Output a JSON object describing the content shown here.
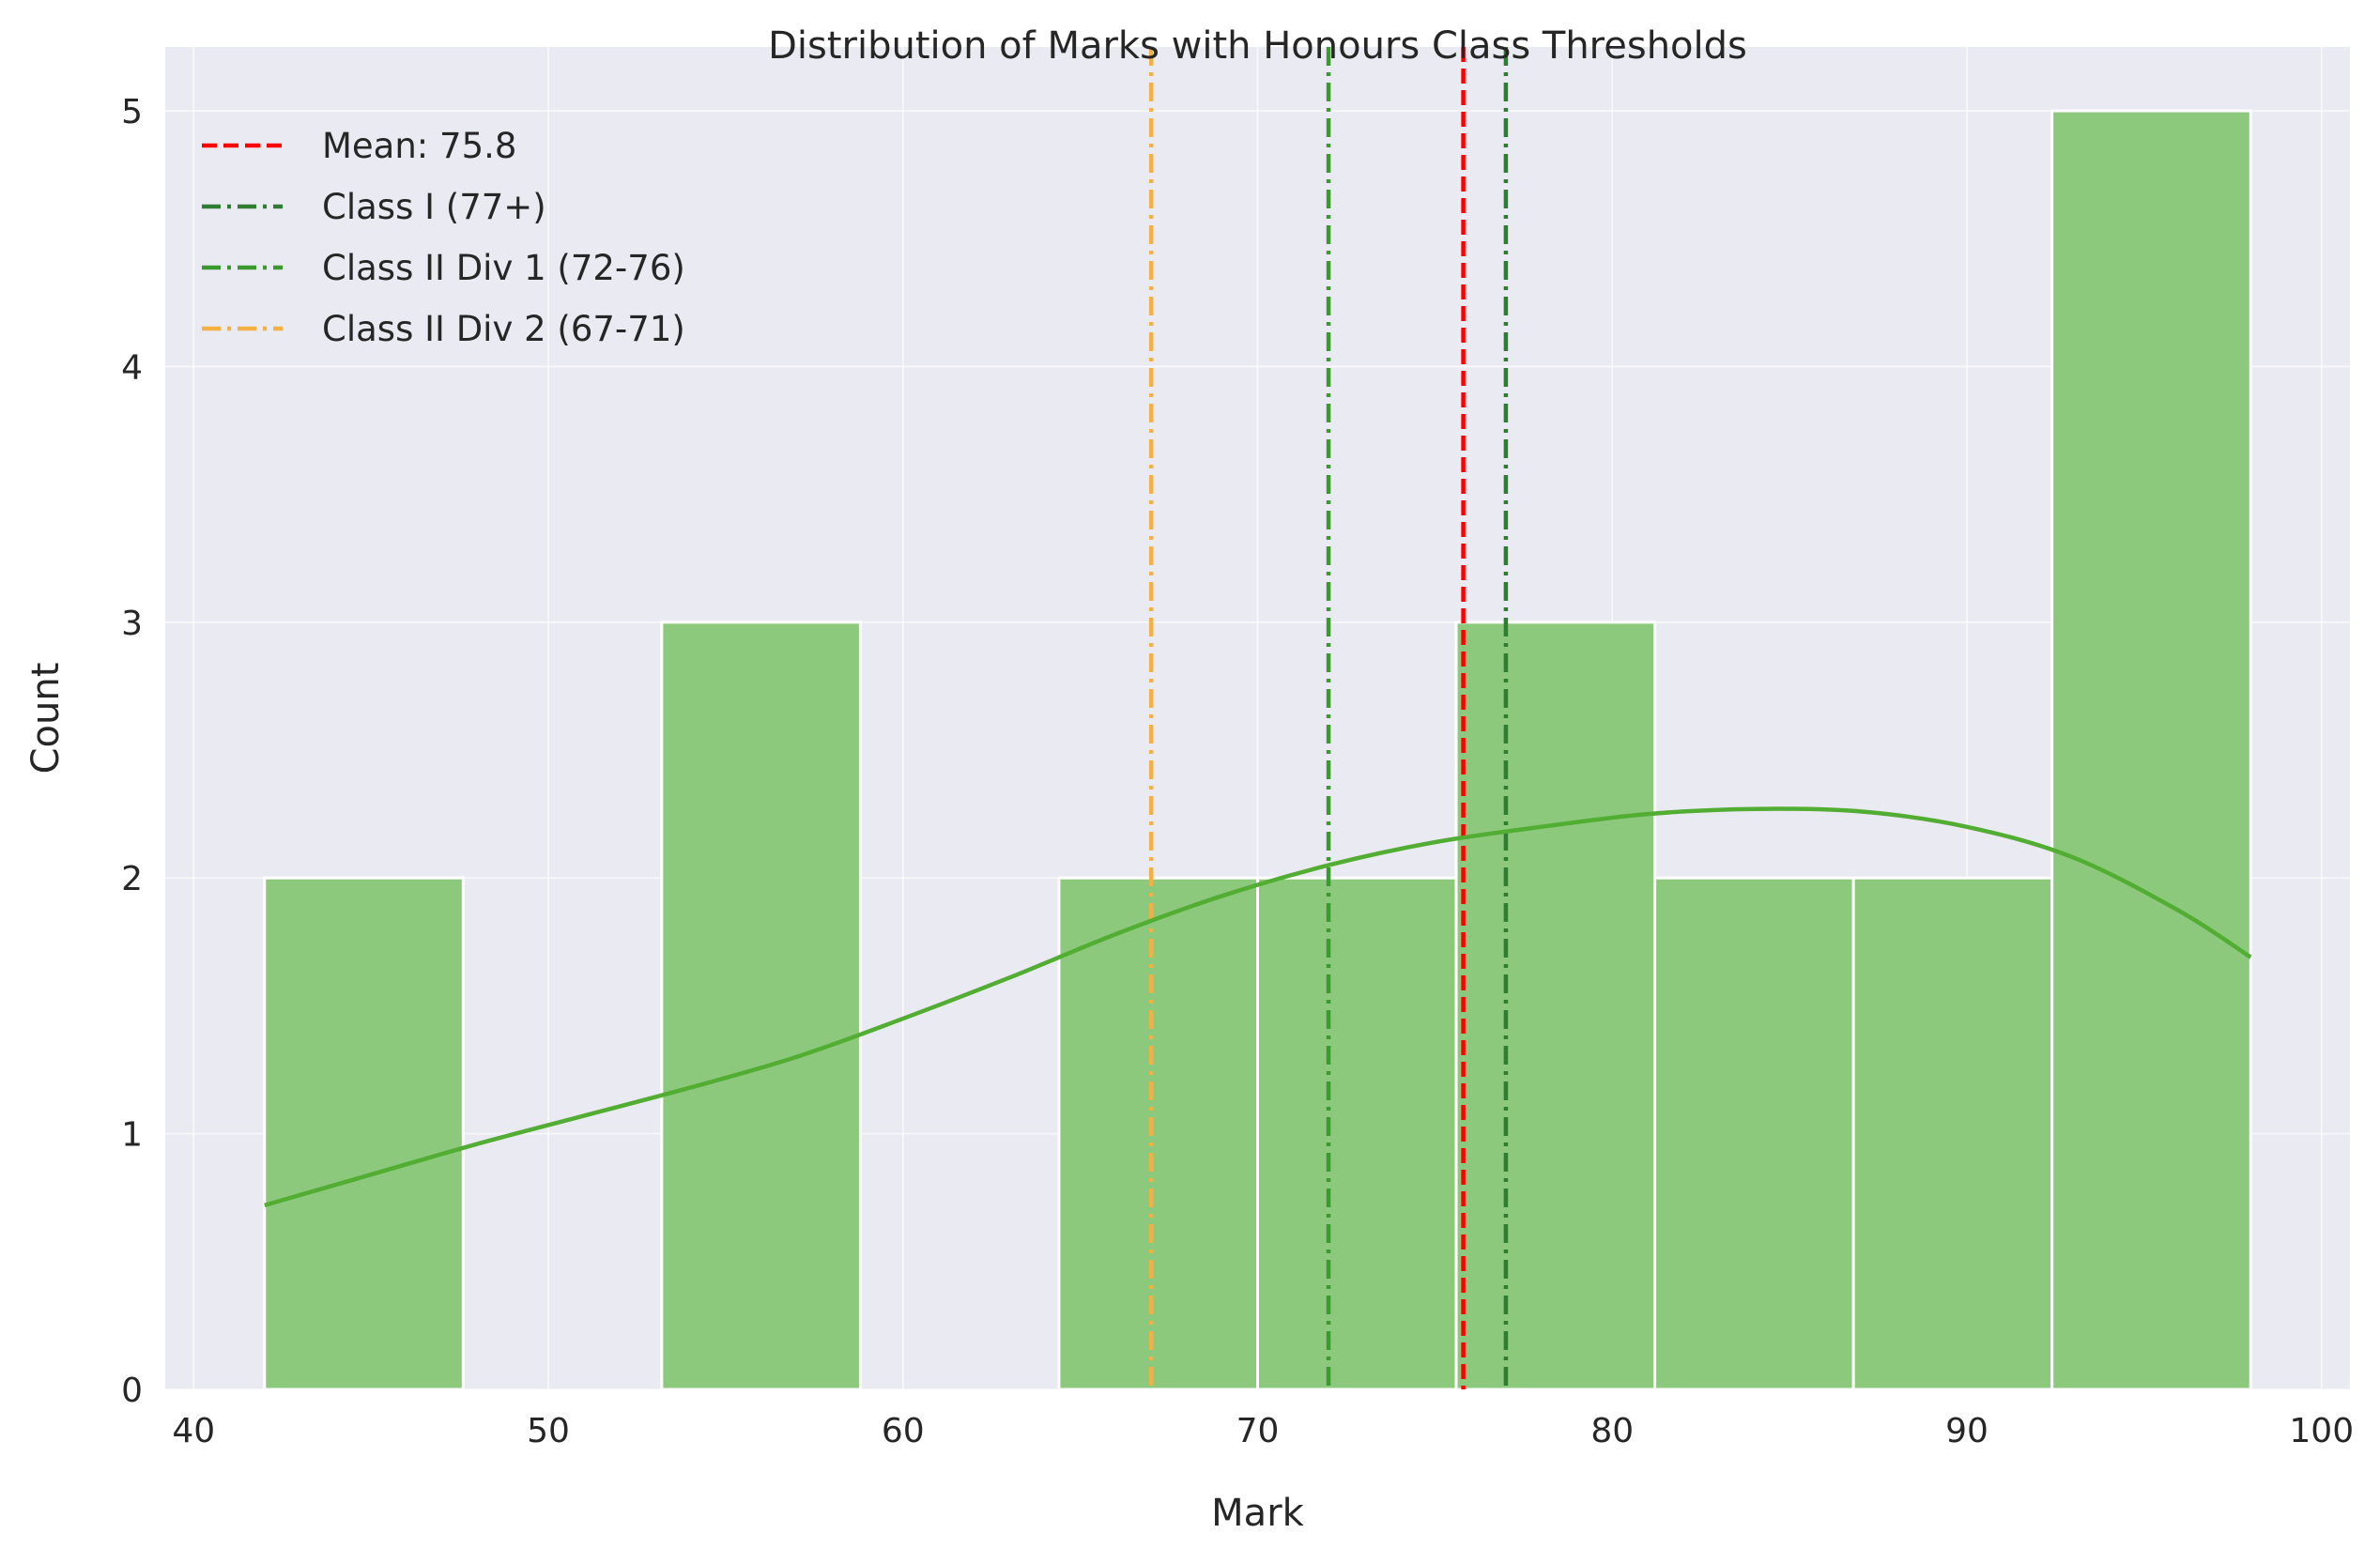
{
  "chart_data": {
    "type": "bar",
    "title": "Distribution of Marks with Honours Class Thresholds",
    "xlabel": "Mark",
    "ylabel": "Count",
    "xlim": [
      39.2,
      100.8
    ],
    "ylim": [
      0,
      5.25
    ],
    "x_ticks": [
      40,
      50,
      60,
      70,
      80,
      90,
      100
    ],
    "y_ticks": [
      0,
      1,
      2,
      3,
      4,
      5
    ],
    "grid": true,
    "legend_position": "upper-left",
    "histogram": {
      "bins": [
        {
          "x0": 42.0,
          "x1": 47.6,
          "count": 2
        },
        {
          "x0": 47.6,
          "x1": 53.2,
          "count": 0
        },
        {
          "x0": 53.2,
          "x1": 58.8,
          "count": 3
        },
        {
          "x0": 58.8,
          "x1": 64.4,
          "count": 0
        },
        {
          "x0": 64.4,
          "x1": 70.0,
          "count": 2
        },
        {
          "x0": 70.0,
          "x1": 75.6,
          "count": 2
        },
        {
          "x0": 75.6,
          "x1": 81.2,
          "count": 3
        },
        {
          "x0": 81.2,
          "x1": 86.8,
          "count": 2
        },
        {
          "x0": 86.8,
          "x1": 92.4,
          "count": 2
        },
        {
          "x0": 92.4,
          "x1": 98.0,
          "count": 5
        }
      ],
      "color": "#8cc97c"
    },
    "kde": {
      "color": "#52ad33",
      "points": [
        [
          42,
          0.72
        ],
        [
          45,
          0.84
        ],
        [
          48,
          0.96
        ],
        [
          51,
          1.07
        ],
        [
          54,
          1.18
        ],
        [
          57,
          1.3
        ],
        [
          60,
          1.45
        ],
        [
          63,
          1.61
        ],
        [
          66,
          1.78
        ],
        [
          69,
          1.93
        ],
        [
          72,
          2.05
        ],
        [
          75,
          2.14
        ],
        [
          78,
          2.2
        ],
        [
          81,
          2.25
        ],
        [
          84,
          2.27
        ],
        [
          87,
          2.26
        ],
        [
          90,
          2.2
        ],
        [
          93,
          2.08
        ],
        [
          96,
          1.87
        ],
        [
          98,
          1.69
        ]
      ]
    },
    "series": [
      {
        "name": "Mean: 75.8",
        "x": 75.8,
        "color": "#ff0000",
        "dash": "dashed"
      },
      {
        "name": "Class I (77+)",
        "x": 77,
        "color": "#2e7d32",
        "dash": "dashdot"
      },
      {
        "name": "Class II Div 1 (72-76)",
        "x": 72,
        "color": "#3a9a2e",
        "dash": "dashdot"
      },
      {
        "name": "Class II Div 2 (67-71)",
        "x": 67,
        "color": "#f4b042",
        "dash": "dashdot"
      }
    ]
  }
}
